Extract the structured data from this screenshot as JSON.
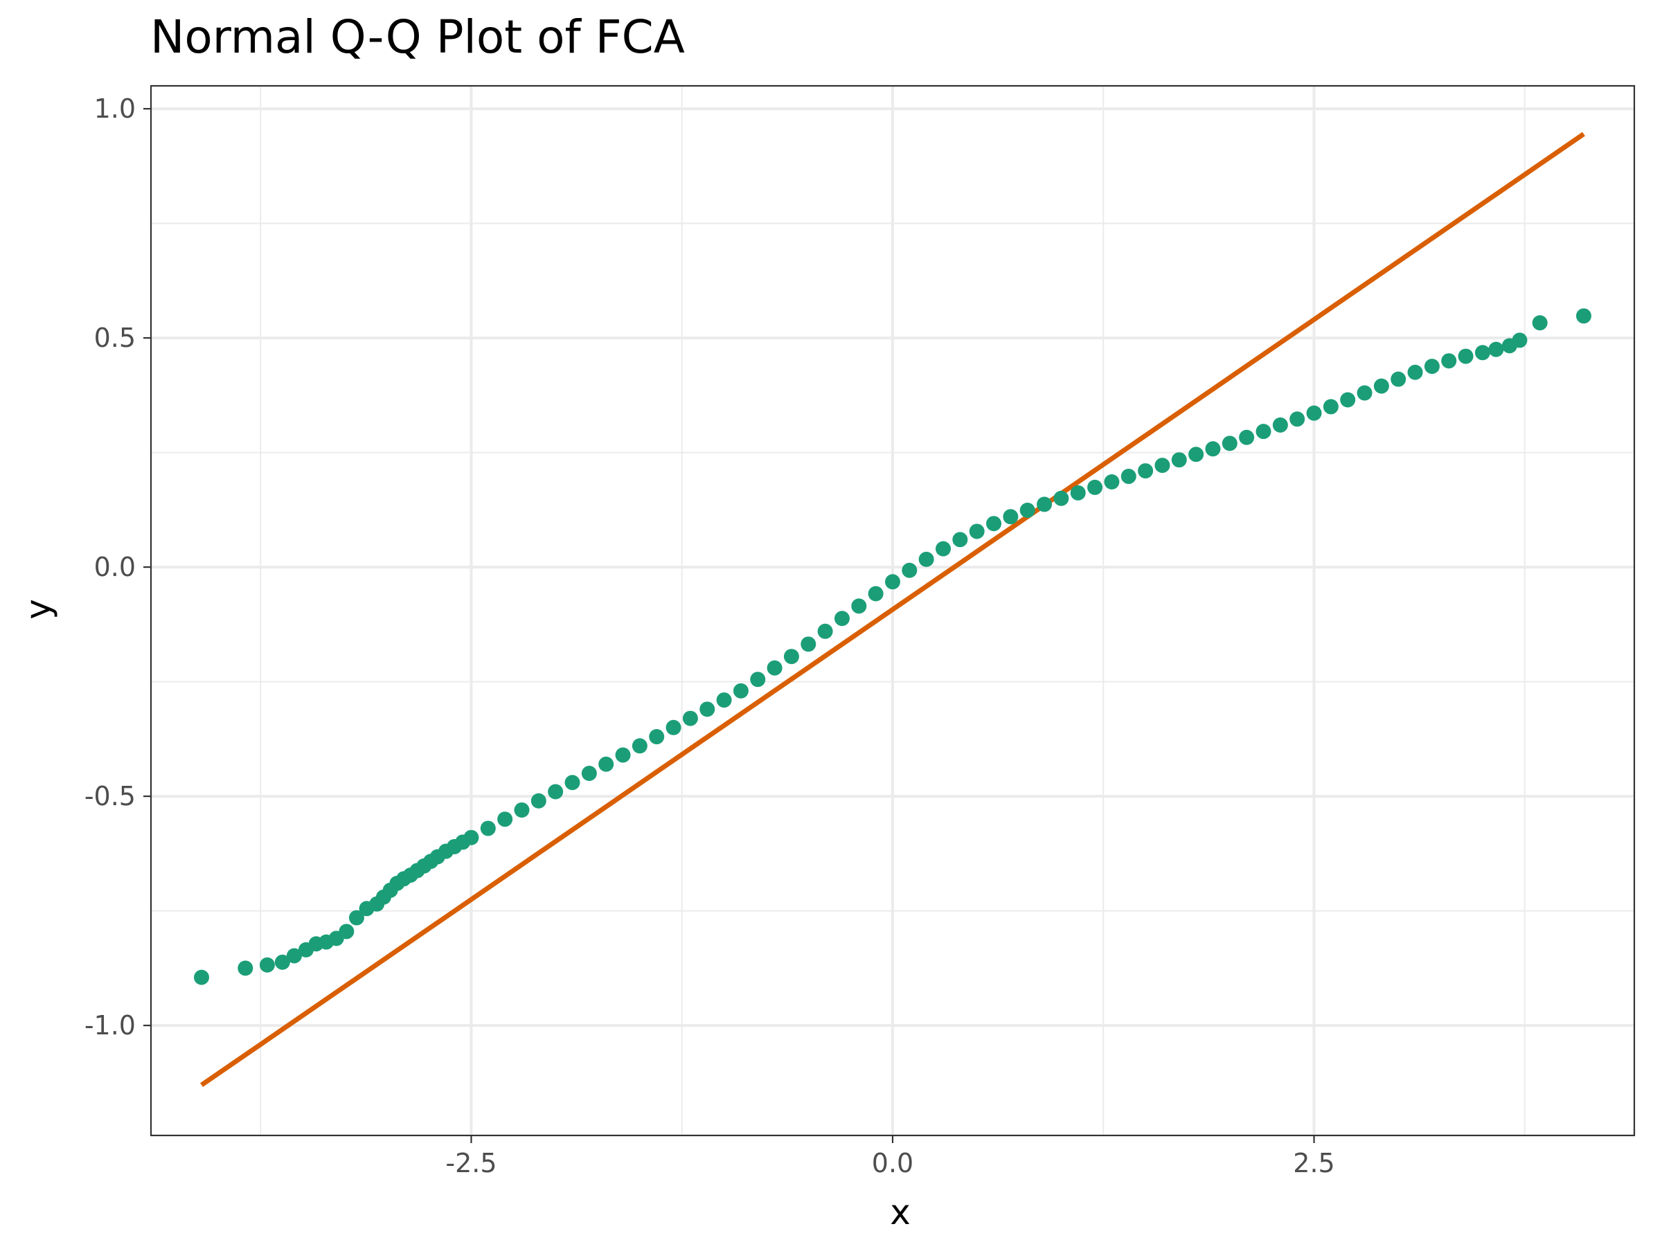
{
  "chart_data": {
    "type": "scatter",
    "title": "Normal Q-Q Plot of FCA",
    "xlabel": "x",
    "ylabel": "y",
    "xlim": [
      -4.4,
      4.4
    ],
    "ylim": [
      -1.24,
      1.05
    ],
    "x_ticks": [
      {
        "value": -2.5,
        "label": "-2.5"
      },
      {
        "value": 0.0,
        "label": "0.0"
      },
      {
        "value": 2.5,
        "label": "2.5"
      }
    ],
    "y_ticks": [
      {
        "value": -1.0,
        "label": "-1.0"
      },
      {
        "value": -0.5,
        "label": "-0.5"
      },
      {
        "value": 0.0,
        "label": "0.0"
      },
      {
        "value": 0.5,
        "label": "0.5"
      },
      {
        "value": 1.0,
        "label": "1.0"
      }
    ],
    "grid": true,
    "reference_line": {
      "x": [
        -4.1,
        4.1
      ],
      "y": [
        -1.13,
        0.945
      ]
    },
    "points": {
      "x": [
        -4.1,
        -3.84,
        -3.71,
        -3.62,
        -3.55,
        -3.48,
        -3.42,
        -3.36,
        -3.3,
        -3.24,
        -3.18,
        -3.12,
        -3.06,
        -3.02,
        -2.98,
        -2.94,
        -2.9,
        -2.86,
        -2.82,
        -2.78,
        -2.74,
        -2.7,
        -2.65,
        -2.6,
        -2.55,
        -2.5,
        -2.4,
        -2.3,
        -2.2,
        -2.1,
        -2.0,
        -1.9,
        -1.8,
        -1.7,
        -1.6,
        -1.5,
        -1.4,
        -1.3,
        -1.2,
        -1.1,
        -1.0,
        -0.9,
        -0.8,
        -0.7,
        -0.6,
        -0.5,
        -0.4,
        -0.3,
        -0.2,
        -0.1,
        0.0,
        0.1,
        0.2,
        0.3,
        0.4,
        0.5,
        0.6,
        0.7,
        0.8,
        0.9,
        1.0,
        1.1,
        1.2,
        1.3,
        1.4,
        1.5,
        1.6,
        1.7,
        1.8,
        1.9,
        2.0,
        2.1,
        2.2,
        2.3,
        2.4,
        2.5,
        2.6,
        2.7,
        2.8,
        2.9,
        3.0,
        3.1,
        3.2,
        3.3,
        3.4,
        3.5,
        3.58,
        3.66,
        3.72,
        3.84,
        4.1
      ],
      "y": [
        -0.895,
        -0.875,
        -0.868,
        -0.862,
        -0.848,
        -0.835,
        -0.822,
        -0.818,
        -0.81,
        -0.795,
        -0.765,
        -0.745,
        -0.735,
        -0.72,
        -0.705,
        -0.69,
        -0.68,
        -0.672,
        -0.662,
        -0.652,
        -0.642,
        -0.632,
        -0.62,
        -0.61,
        -0.6,
        -0.59,
        -0.57,
        -0.55,
        -0.53,
        -0.51,
        -0.49,
        -0.47,
        -0.45,
        -0.43,
        -0.41,
        -0.39,
        -0.37,
        -0.35,
        -0.33,
        -0.31,
        -0.29,
        -0.27,
        -0.245,
        -0.22,
        -0.195,
        -0.168,
        -0.14,
        -0.112,
        -0.085,
        -0.058,
        -0.032,
        -0.007,
        0.017,
        0.04,
        0.06,
        0.078,
        0.095,
        0.11,
        0.124,
        0.137,
        0.15,
        0.162,
        0.174,
        0.186,
        0.198,
        0.21,
        0.222,
        0.234,
        0.246,
        0.258,
        0.27,
        0.283,
        0.296,
        0.31,
        0.323,
        0.336,
        0.35,
        0.365,
        0.38,
        0.395,
        0.41,
        0.425,
        0.438,
        0.45,
        0.46,
        0.468,
        0.475,
        0.483,
        0.495,
        0.533,
        0.548
      ]
    },
    "colors": {
      "points": "#1b9e77",
      "line": "#d95f02",
      "grid": "#ebebeb",
      "panel_border": "#333333"
    }
  }
}
